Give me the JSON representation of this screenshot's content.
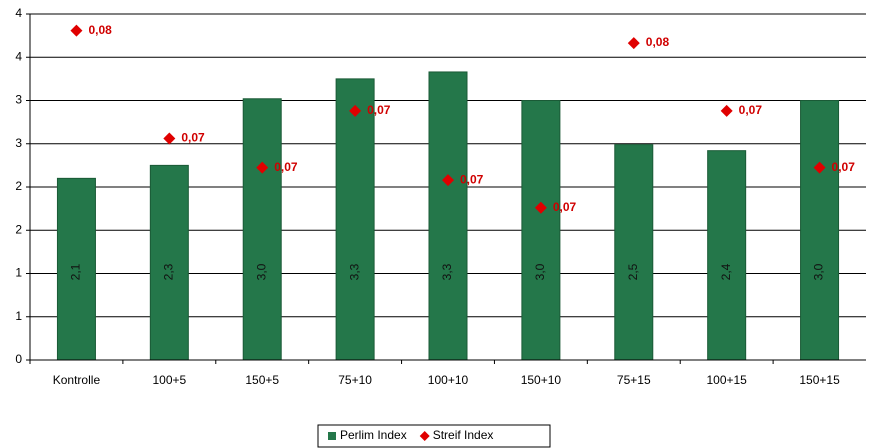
{
  "chart_data": {
    "type": "bar",
    "categories": [
      "Kontrolle",
      "100+5",
      "150+5",
      "75+10",
      "100+10",
      "150+10",
      "75+15",
      "100+15",
      "150+15"
    ],
    "series": [
      {
        "name": "Perlim Index",
        "color": "#24774a",
        "values": [
          2.1,
          2.25,
          3.02,
          3.25,
          3.33,
          3.0,
          2.49,
          2.42,
          3.0
        ],
        "value_labels": [
          "2,1",
          "2,3",
          "3,0",
          "3,3",
          "3,3",
          "3,0",
          "2,5",
          "2,4",
          "3,0"
        ]
      },
      {
        "name": "Streif Index",
        "type": "scatter",
        "axis": "y2",
        "color": "#e00000",
        "values": [
          0.0788,
          0.071,
          0.0689,
          0.073,
          0.068,
          0.066,
          0.0779,
          0.073,
          0.0689
        ],
        "value_labels": [
          "0,08",
          "0,07",
          "0,07",
          "0,07",
          "0,07",
          "0,07",
          "0,08",
          "0,07",
          "0,07"
        ]
      }
    ],
    "ylim": [
      0,
      4
    ],
    "yticks": [
      0,
      {
        "value": 0.5,
        "label": "1"
      },
      1,
      {
        "value": 1.5,
        "label": "2"
      },
      2,
      {
        "value": 2.5,
        "label": "3"
      },
      3,
      {
        "value": 3.5,
        "label": "4"
      },
      4
    ],
    "y2lim": [
      0.055,
      0.08
    ],
    "grid": true,
    "legend": "bottom"
  }
}
